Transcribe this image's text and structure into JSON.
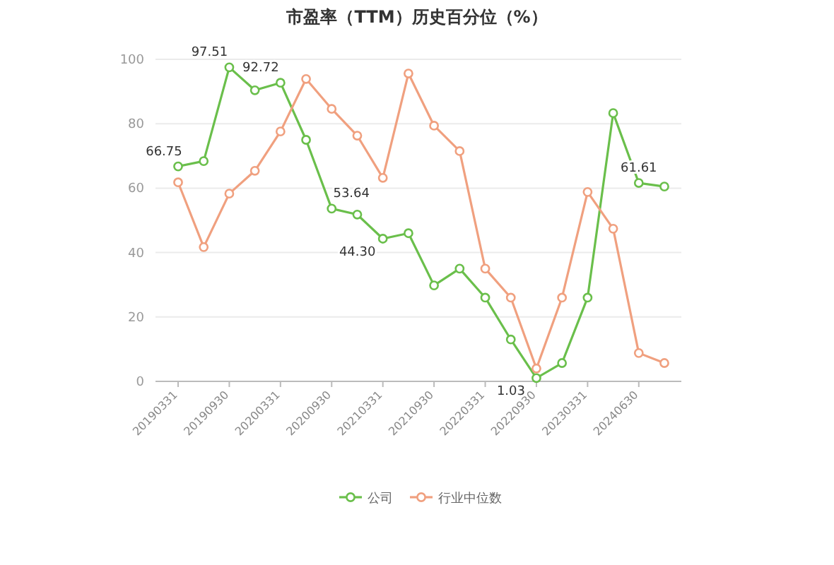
{
  "chart_data": {
    "type": "line",
    "title": "市盈率（TTM）历史百分位（%）",
    "categories": [
      "20190331",
      null,
      "20190930",
      null,
      "20200331",
      null,
      "20200930",
      null,
      "20210331",
      null,
      "20210930",
      null,
      "20220331",
      null,
      "20220930",
      null,
      "20230331",
      null,
      "20240630",
      null
    ],
    "series": [
      {
        "name": "公司",
        "color": "#6abf4b",
        "values": [
          66.75,
          68.4,
          97.51,
          90.4,
          92.72,
          75,
          53.64,
          51.8,
          44.3,
          46,
          29.8,
          35,
          26,
          13,
          1.03,
          5.7,
          26,
          83.3,
          61.61,
          60.5
        ],
        "value_labels": [
          "66.75",
          null,
          "97.51",
          null,
          "92.72",
          null,
          "53.64",
          null,
          "44.30",
          null,
          null,
          null,
          null,
          null,
          "1.03",
          null,
          null,
          null,
          "61.61",
          null
        ]
      },
      {
        "name": "行业中位数",
        "color": "#f0a07f",
        "values": [
          61.8,
          41.7,
          58.3,
          65.4,
          77.6,
          93.9,
          84.6,
          76.3,
          63.2,
          95.6,
          79.4,
          71.5,
          35,
          26,
          4,
          26,
          58.8,
          47.4,
          8.8,
          5.7
        ]
      }
    ],
    "ylim": [
      0,
      100
    ],
    "yticks": [
      0,
      20,
      40,
      60,
      80,
      100
    ],
    "grid": "y",
    "legend": "bottom",
    "marker": "circle",
    "line_style": "solid"
  }
}
